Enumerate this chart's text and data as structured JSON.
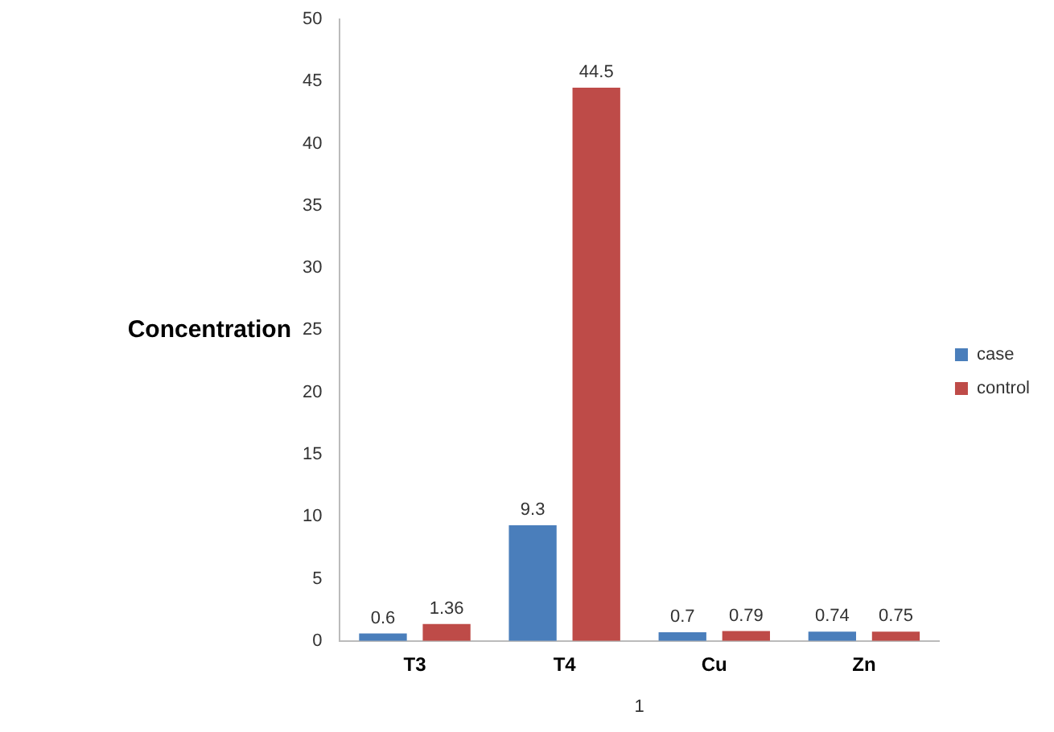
{
  "chart_data": {
    "type": "bar",
    "ylabel": "Concentration",
    "xlabel": "1",
    "categories": [
      "T3",
      "T4",
      "Cu",
      "Zn"
    ],
    "series": [
      {
        "name": "case",
        "color": "#4a7ebb",
        "values": [
          0.6,
          9.3,
          0.7,
          0.74
        ]
      },
      {
        "name": "control",
        "color": "#be4b48",
        "values": [
          1.36,
          44.5,
          0.79,
          0.75
        ]
      }
    ],
    "ylim": [
      0,
      50
    ],
    "yticks": [
      0,
      5,
      10,
      15,
      20,
      25,
      30,
      35,
      40,
      45,
      50
    ],
    "grid": false,
    "legend": "right",
    "data_labels": true
  }
}
